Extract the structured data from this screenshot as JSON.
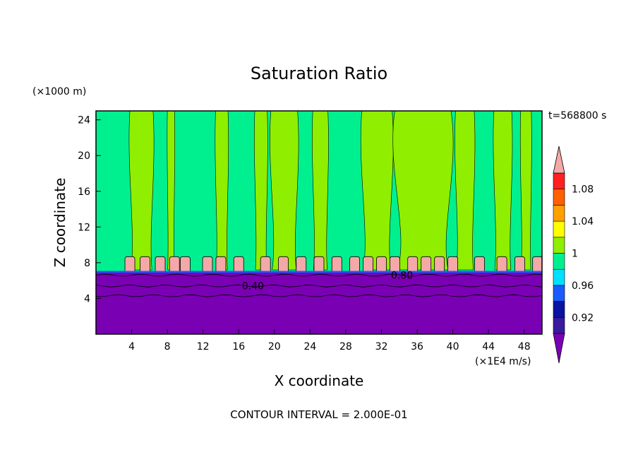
{
  "chart_data": {
    "type": "heatmap",
    "title": "Saturation Ratio",
    "xlabel": "X coordinate",
    "ylabel": "Z coordinate",
    "x_unit": "(×1E4 m/s)",
    "y_unit": "(×1000 m)",
    "time_label": "t=568800 s",
    "footer": "CONTOUR INTERVAL = 2.000E-01",
    "xlim": [
      0,
      50
    ],
    "ylim": [
      0,
      25
    ],
    "x_ticks": [
      4,
      8,
      12,
      16,
      20,
      24,
      28,
      32,
      36,
      40,
      44,
      48
    ],
    "y_ticks": [
      4,
      8,
      12,
      16,
      20,
      24
    ],
    "contour_labels": [
      {
        "text": "0.40",
        "x": 17.6,
        "y": 5.4
      },
      {
        "text": "0.80",
        "x": 34.3,
        "y": 6.6
      }
    ],
    "colorbar": {
      "levels": [
        0.9,
        0.92,
        0.94,
        0.96,
        0.98,
        1.0,
        1.02,
        1.04,
        1.06,
        1.08,
        1.1
      ],
      "labels": [
        "0.92",
        "0.96",
        "1",
        "1.04",
        "1.08"
      ],
      "label_values": [
        0.92,
        0.96,
        1.0,
        1.04,
        1.08
      ],
      "colors": [
        "#3a1aa0",
        "#0a14a0",
        "#1a5aff",
        "#00e0ff",
        "#00f090",
        "#90ee00",
        "#ffff00",
        "#ffa000",
        "#ff6000",
        "#ff2020"
      ],
      "over_color": "#f4a8a8",
      "under_color": "#7a00b4"
    },
    "regions": {
      "dry_layer_top_km": 7.0,
      "cloud_band_km": [
        7.2,
        8.6
      ],
      "background_color": "#00f090",
      "supersat_color": "#90ee00",
      "dry_color": "#7a00b4"
    },
    "supersat_columns_x": [
      [
        3.8,
        6.4
      ],
      [
        8.0,
        8.8
      ],
      [
        13.4,
        14.8
      ],
      [
        17.8,
        19.2
      ],
      [
        19.6,
        22.6
      ],
      [
        24.3,
        26.0
      ],
      [
        29.8,
        33.2
      ],
      [
        33.5,
        39.8
      ],
      [
        40.3,
        42.4
      ],
      [
        44.6,
        46.6
      ],
      [
        47.6,
        48.8
      ]
    ],
    "cloud_blobs_x": [
      3.8,
      5.5,
      7.2,
      8.8,
      10.0,
      12.5,
      14.0,
      16.0,
      19.0,
      21.0,
      23.0,
      25.0,
      27.0,
      29.0,
      30.5,
      32.0,
      33.5,
      35.5,
      37.0,
      38.5,
      40.0,
      43.0,
      45.5,
      47.5,
      49.5
    ]
  }
}
